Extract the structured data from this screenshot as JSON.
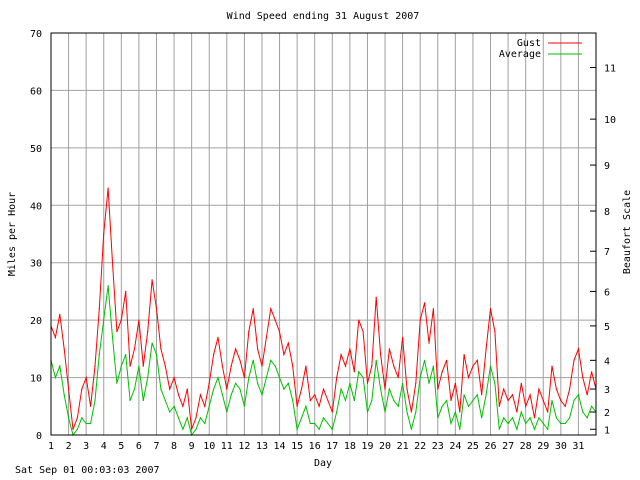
{
  "footer": "Sat Sep 01 00:03:03 2007",
  "chart_data": {
    "type": "line",
    "title": "Wind Speed ending 31 August 2007",
    "xlabel": "Day",
    "ylabel": "Miles per Hour",
    "y2label": "Beaufort Scale",
    "xlim": [
      1,
      32
    ],
    "ylim": [
      0,
      70
    ],
    "x_ticks": [
      "1",
      "2",
      "3",
      "4",
      "5",
      "6",
      "7",
      "8",
      "9",
      "10",
      "11",
      "12",
      "13",
      "14",
      "15",
      "16",
      "17",
      "18",
      "19",
      "20",
      "21",
      "22",
      "23",
      "24",
      "25",
      "26",
      "27",
      "28",
      "29",
      "30",
      "31"
    ],
    "y_ticks": [
      "0",
      "10",
      "20",
      "30",
      "40",
      "50",
      "60",
      "70"
    ],
    "beaufort_ticks": [
      {
        "label": "1",
        "mph": 1
      },
      {
        "label": "2",
        "mph": 4
      },
      {
        "label": "3",
        "mph": 8
      },
      {
        "label": "4",
        "mph": 13
      },
      {
        "label": "5",
        "mph": 19
      },
      {
        "label": "6",
        "mph": 25
      },
      {
        "label": "7",
        "mph": 32
      },
      {
        "label": "8",
        "mph": 39
      },
      {
        "label": "9",
        "mph": 47
      },
      {
        "label": "10",
        "mph": 55
      },
      {
        "label": "11",
        "mph": 64
      }
    ],
    "grid": true,
    "legend": "top-right",
    "series": [
      {
        "name": "Gust",
        "color": "#ff0000",
        "x": [
          1.0,
          1.25,
          1.5,
          1.75,
          2.0,
          2.25,
          2.5,
          2.75,
          3.0,
          3.25,
          3.5,
          3.75,
          4.0,
          4.25,
          4.5,
          4.75,
          5.0,
          5.25,
          5.5,
          5.75,
          6.0,
          6.25,
          6.5,
          6.75,
          7.0,
          7.25,
          7.5,
          7.75,
          8.0,
          8.25,
          8.5,
          8.75,
          9.0,
          9.25,
          9.5,
          9.75,
          10.0,
          10.25,
          10.5,
          10.75,
          11.0,
          11.25,
          11.5,
          11.75,
          12.0,
          12.25,
          12.5,
          12.75,
          13.0,
          13.25,
          13.5,
          13.75,
          14.0,
          14.25,
          14.5,
          14.75,
          15.0,
          15.25,
          15.5,
          15.75,
          16.0,
          16.25,
          16.5,
          16.75,
          17.0,
          17.25,
          17.5,
          17.75,
          18.0,
          18.25,
          18.5,
          18.75,
          19.0,
          19.25,
          19.5,
          19.75,
          20.0,
          20.25,
          20.5,
          20.75,
          21.0,
          21.25,
          21.5,
          21.75,
          22.0,
          22.25,
          22.5,
          22.75,
          23.0,
          23.25,
          23.5,
          23.75,
          24.0,
          24.25,
          24.5,
          24.75,
          25.0,
          25.25,
          25.5,
          25.75,
          26.0,
          26.25,
          26.5,
          26.75,
          27.0,
          27.25,
          27.5,
          27.75,
          28.0,
          28.25,
          28.5,
          28.75,
          29.0,
          29.25,
          29.5,
          29.75,
          30.0,
          30.25,
          30.5,
          30.75,
          31.0,
          31.25,
          31.5,
          31.75,
          32.0
        ],
        "values": [
          19,
          17,
          21,
          15,
          8,
          1,
          3,
          8,
          10,
          5,
          12,
          22,
          35,
          43,
          30,
          18,
          20,
          25,
          12,
          15,
          20,
          12,
          18,
          27,
          22,
          15,
          12,
          8,
          10,
          7,
          5,
          8,
          1,
          3,
          7,
          5,
          9,
          14,
          17,
          12,
          8,
          12,
          15,
          13,
          10,
          18,
          22,
          15,
          12,
          17,
          22,
          20,
          18,
          14,
          16,
          12,
          5,
          8,
          12,
          6,
          7,
          5,
          8,
          6,
          4,
          10,
          14,
          12,
          15,
          11,
          20,
          18,
          9,
          12,
          24,
          14,
          8,
          15,
          12,
          10,
          17,
          8,
          4,
          9,
          20,
          23,
          16,
          22,
          8,
          11,
          13,
          6,
          9,
          4,
          14,
          10,
          12,
          13,
          7,
          15,
          22,
          18,
          5,
          8,
          6,
          7,
          4,
          9,
          5,
          7,
          3,
          8,
          6,
          4,
          12,
          8,
          6,
          5,
          8,
          13,
          15,
          10,
          7,
          11,
          8
        ]
      },
      {
        "name": "Average",
        "color": "#00c000",
        "x": [
          1.0,
          1.25,
          1.5,
          1.75,
          2.0,
          2.25,
          2.5,
          2.75,
          3.0,
          3.25,
          3.5,
          3.75,
          4.0,
          4.25,
          4.5,
          4.75,
          5.0,
          5.25,
          5.5,
          5.75,
          6.0,
          6.25,
          6.5,
          6.75,
          7.0,
          7.25,
          7.5,
          7.75,
          8.0,
          8.25,
          8.5,
          8.75,
          9.0,
          9.25,
          9.5,
          9.75,
          10.0,
          10.25,
          10.5,
          10.75,
          11.0,
          11.25,
          11.5,
          11.75,
          12.0,
          12.25,
          12.5,
          12.75,
          13.0,
          13.25,
          13.5,
          13.75,
          14.0,
          14.25,
          14.5,
          14.75,
          15.0,
          15.25,
          15.5,
          15.75,
          16.0,
          16.25,
          16.5,
          16.75,
          17.0,
          17.25,
          17.5,
          17.75,
          18.0,
          18.25,
          18.5,
          18.75,
          19.0,
          19.25,
          19.5,
          19.75,
          20.0,
          20.25,
          20.5,
          20.75,
          21.0,
          21.25,
          21.5,
          21.75,
          22.0,
          22.25,
          22.5,
          22.75,
          23.0,
          23.25,
          23.5,
          23.75,
          24.0,
          24.25,
          24.5,
          24.75,
          25.0,
          25.25,
          25.5,
          25.75,
          26.0,
          26.25,
          26.5,
          26.75,
          27.0,
          27.25,
          27.5,
          27.75,
          28.0,
          28.25,
          28.5,
          28.75,
          29.0,
          29.25,
          29.5,
          29.75,
          30.0,
          30.25,
          30.5,
          30.75,
          31.0,
          31.25,
          31.5,
          31.75,
          32.0
        ],
        "values": [
          13,
          10,
          12,
          7,
          3,
          0,
          1,
          3,
          2,
          2,
          6,
          14,
          20,
          26,
          17,
          9,
          12,
          14,
          6,
          8,
          12,
          6,
          10,
          16,
          14,
          8,
          6,
          4,
          5,
          3,
          1,
          3,
          0,
          1,
          3,
          2,
          5,
          8,
          10,
          7,
          4,
          7,
          9,
          8,
          5,
          10,
          13,
          9,
          7,
          10,
          13,
          12,
          10,
          8,
          9,
          6,
          1,
          3,
          5,
          2,
          2,
          1,
          3,
          2,
          1,
          4,
          8,
          6,
          9,
          6,
          11,
          10,
          4,
          6,
          13,
          8,
          4,
          8,
          6,
          5,
          9,
          4,
          1,
          4,
          10,
          13,
          9,
          12,
          3,
          5,
          6,
          2,
          4,
          1,
          7,
          5,
          6,
          7,
          3,
          7,
          12,
          9,
          1,
          3,
          2,
          3,
          1,
          4,
          2,
          3,
          1,
          3,
          2,
          1,
          6,
          3,
          2,
          2,
          3,
          6,
          7,
          4,
          3,
          5,
          4
        ]
      }
    ]
  }
}
